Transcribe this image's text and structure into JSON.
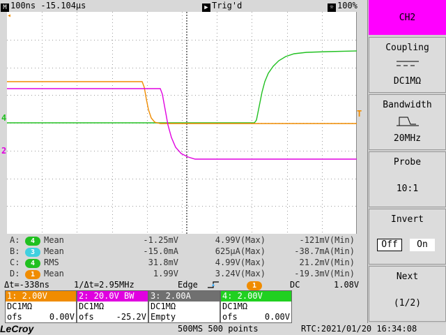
{
  "topbar": {
    "timebase_icon": "timebase-icon",
    "timebase": "100ns -15.104µs",
    "trigger_icon": "play-icon",
    "trigger_status": "Trig'd",
    "brightness_icon": "brightness-icon",
    "brightness": "100%"
  },
  "scope": {
    "ch4_marker": "4",
    "ch2_marker": "2",
    "trigger_level_marker": "T",
    "trigger_pos_marker": "◂",
    "colors": {
      "ch1": "#f08c00",
      "ch2": "#e000e0",
      "ch3": "#40d0e0",
      "ch4": "#20c020",
      "grid": "#9a9a9a"
    }
  },
  "measurements": [
    {
      "slot": "A:",
      "channel": "4",
      "color": "#20c020",
      "type": "Mean",
      "value": "-1.25mV",
      "max": "4.99V(Max)",
      "min": "-121mV(Min)"
    },
    {
      "slot": "B:",
      "channel": "3",
      "color": "#40d0e0",
      "type": "Mean",
      "value": "-15.0mA",
      "max": "625µA(Max)",
      "min": "-38.7mA(Min)"
    },
    {
      "slot": "C:",
      "channel": "4",
      "color": "#20c020",
      "type": "RMS",
      "value": "31.8mV",
      "max": "4.99V(Max)",
      "min": "21.2mV(Min)"
    },
    {
      "slot": "D:",
      "channel": "1",
      "color": "#f08c00",
      "type": "Mean",
      "value": "1.99V",
      "max": "3.24V(Max)",
      "min": "-19.3mV(Min)"
    }
  ],
  "trigger_row": {
    "delta_t": "Δt=-338ns",
    "inv_delta_t": "1/Δt=2.95MHz",
    "trigger_type": "Edge",
    "trigger_source": "1",
    "coupling": "DC",
    "level": "1.08V"
  },
  "channels": [
    {
      "header": "1: 2.00V",
      "color": "#f08c00",
      "line2": "DC1MΩ",
      "line3_label": "ofs",
      "line3_value": "0.00V"
    },
    {
      "header": "2: 20.0V  BW",
      "color": "#e000e0",
      "line2": "DC1MΩ",
      "line3_label": "ofs",
      "line3_value": "-25.2V"
    },
    {
      "header": "3: 2.00A",
      "color": "#707070",
      "line2": "DC1MΩ",
      "line3_label": "Empty",
      "line3_value": ""
    },
    {
      "header": "4: 2.00V",
      "color": "#20d020",
      "line2": "DC1MΩ",
      "line3_label": "ofs",
      "line3_value": "0.00V"
    }
  ],
  "bottombar": {
    "logo": "LeCroy",
    "acquisition": "500MS 500 points",
    "rtc": "RTC:2021/01/20 16:34:08"
  },
  "menu": {
    "channel_title": "CH2",
    "coupling_label": "Coupling",
    "coupling_value": "DC1MΩ",
    "bandwidth_label": "Bandwidth",
    "bandwidth_value": "20MHz",
    "probe_label": "Probe",
    "probe_value": "10:1",
    "invert_label": "Invert",
    "invert_off": "Off",
    "invert_on": "On",
    "next_label": "Next",
    "next_page": "(1/2)"
  }
}
